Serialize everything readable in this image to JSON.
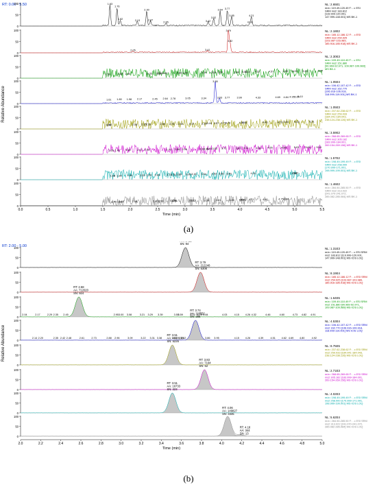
{
  "captions": {
    "a": "(a)",
    "b": "(b)"
  },
  "chart_data": [
    {
      "type": "line",
      "rt_label": "RT: 0.00 - 5.50",
      "xlabel": "Time (min)",
      "xlim": [
        0,
        5.5
      ],
      "x_ticks": [
        0.0,
        0.5,
        1.0,
        1.5,
        2.0,
        2.5,
        3.0,
        3.5,
        4.0,
        4.5,
        5.0,
        5.5
      ],
      "ylabel": "Relative Abundance",
      "ylim": [
        0,
        100
      ],
      "y_ticks": [
        0,
        50,
        100
      ],
      "traces": [
        {
          "color": "#000000",
          "nl": "NL: 2.65E1",
          "desc": [
            "m/z= 119.49-120.49 F: - c ESI",
            "SRM ms2 183.812",
            "[119.999-120.001,",
            "147.999-148.001] MS BK-1"
          ],
          "peaks": [
            {
              "x": 1.63,
              "y": 92
            },
            {
              "x": 1.76,
              "y": 80
            },
            {
              "x": 1.82,
              "y": 25
            },
            {
              "x": 2.13,
              "y": 18
            },
            {
              "x": 2.3,
              "y": 65
            },
            {
              "x": 2.37,
              "y": 20
            },
            {
              "x": 2.65,
              "y": 10
            },
            {
              "x": 3.42,
              "y": 15
            },
            {
              "x": 3.52,
              "y": 30
            },
            {
              "x": 3.64,
              "y": 65
            },
            {
              "x": 3.77,
              "y": 70
            },
            {
              "x": 3.85,
              "y": 40
            },
            {
              "x": 4.18,
              "y": 10
            },
            {
              "x": 4.21,
              "y": 40
            }
          ],
          "labels": [
            "1.63",
            "1.76",
            "1.82",
            "2.13",
            "2.30",
            "2.37",
            "2.65",
            "3.42",
            "3.52",
            "3.64",
            "3.77",
            "3.85",
            "4.18",
            "4.21"
          ]
        },
        {
          "color": "#cc0000",
          "nl": "NL: 2.18E2",
          "desc": [
            "m/z= 185.12-186.12 F: - c ESI",
            "SRM ms2 254.925",
            "[103.987-103.989,",
            "185.916-185.918] MS BK-1"
          ],
          "peaks": [
            {
              "x": 2.05,
              "y": 5
            },
            {
              "x": 3.41,
              "y": 6
            },
            {
              "x": 3.79,
              "y": 100
            },
            {
              "x": 3.82,
              "y": 45
            }
          ],
          "labels": [
            "2.05",
            "3.41",
            "3.79",
            "3.82"
          ]
        },
        {
          "color": "#009900",
          "nl": "NL: 2.30E3",
          "desc": [
            "m/z= 109.49-110.49 F: - c ESI",
            "SRM ms2 151.880",
            "[90.969-92.971, 109.987-109.989]",
            "MS BK-1"
          ],
          "labels": [
            "1.59",
            "1.82",
            "1.95",
            "2.35",
            "2.52",
            "2.54",
            "2.63",
            "2.89",
            "3.00",
            "3.34",
            "3.52",
            "3.64",
            "3.94",
            "4.08",
            "4.14",
            "4.32",
            "4.57",
            "4.83",
            "5.00",
            "5.19",
            "5.47"
          ]
        },
        {
          "color": "#0000cc",
          "nl": "NL: 1.05E4",
          "desc": [
            "m/z= 106.42-107.42 F: - c ESI",
            "SRM ms2 162.770",
            "[106.916-106.918,",
            "118.999-119.001] MS BK-1"
          ],
          "peaks": [
            {
              "x": 3.55,
              "y": 100
            },
            {
              "x": 3.63,
              "y": 20
            }
          ],
          "labels": [
            "1.61",
            "1.80",
            "1.98",
            "2.17",
            "2.45",
            "2.64",
            "2.78",
            "3.05",
            "3.34",
            "3.55",
            "3.63",
            "3.77",
            "3.99",
            "4.33",
            "4.69",
            "4.84",
            "4.95",
            "5.04",
            "5.10"
          ]
        },
        {
          "color": "#999900",
          "nl": "NL: 1.05E3",
          "desc": [
            "m/z= 237.62-238.62 F: - c ESI",
            "SRM ms2 259.033",
            "[184.041-184.043,",
            "238.124-238.126] MS BK-1"
          ],
          "labels": [
            "1.60",
            "1.62",
            "2.08",
            "2.25",
            "2.33",
            "2.59",
            "2.76",
            "2.92",
            "3.12",
            "3.35",
            "3.44",
            "3.57",
            "3.70",
            "3.78",
            "4.03",
            "4.08",
            "4.46",
            "4.73",
            "4.84",
            "5.04",
            "5.31"
          ]
        },
        {
          "color": "#cc00cc",
          "nl": "NL: 3.59E2",
          "desc": [
            "m/z= 268.65-269.65 F: - c ESI",
            "SRM ms2 305.182",
            "[183.999-184.001,",
            "269.154-269.156] MS BK-1"
          ],
          "labels": [
            "1.65",
            "1.76",
            "1.96",
            "2.17",
            "2.30",
            "2.70",
            "2.86",
            "2.99",
            "3.31",
            "3.38",
            "3.44",
            "3.54",
            "3.71",
            "3.97",
            "4.11",
            "4.34",
            "4.55",
            "4.80",
            "5.03",
            "5.24",
            "5.44"
          ]
        },
        {
          "color": "#00aaaa",
          "nl": "NL: 1.57E2",
          "desc": [
            "m/z= 198.49-199.49 F: - c ESI",
            "SRM ms2 258.000",
            "[170.999-171.001,",
            "198.999-199.001] MS BK-1"
          ],
          "labels": [
            "1.68",
            "1.80",
            "1.99",
            "2.22",
            "2.34",
            "2.49",
            "2.71",
            "2.78",
            "2.89",
            "3.06",
            "3.16",
            "3.34",
            "3.53",
            "3.66",
            "3.80",
            "4.24",
            "4.99",
            "5.02"
          ]
        },
        {
          "color": "#888888",
          "nl": "NL: 1.46E2",
          "desc": [
            "m/z= 284.50-285.50 F: - c ESI",
            "SRM ms2 313.022",
            "[241.070-241.072,",
            "285.082-285.084] MS BK-1"
          ],
          "labels": [
            "1.70",
            "1.81",
            "1.84",
            "2.08",
            "2.46",
            "2.56",
            "2.79",
            "2.81",
            "3.12",
            "3.15",
            "3.39",
            "3.61",
            "3.85",
            "4.03",
            "4.06",
            "4.21",
            "4.46",
            "4.75",
            "4.84"
          ]
        }
      ]
    },
    {
      "type": "area",
      "rt_label": "RT: 2.00 - 5.00",
      "xlabel": "Time (min)",
      "xlim": [
        2.0,
        5.0
      ],
      "x_ticks": [
        2.0,
        2.2,
        2.4,
        2.6,
        2.8,
        3.0,
        3.2,
        3.4,
        3.6,
        3.8,
        4.0,
        4.2,
        4.4,
        4.6,
        4.8,
        5.0
      ],
      "ylabel": "Relative Abundance",
      "ylim": [
        0,
        100
      ],
      "y_ticks": [
        0,
        50,
        100
      ],
      "traces": [
        {
          "color": "#000000",
          "nl": "NL: 1.31E3",
          "desc": [
            "m/z= 119.49-120.49 F: - c ESI SRM",
            "ms2 183.812 [119.999-120.001,",
            "147.999-148.001] MS ICIS LOQ"
          ],
          "peaks": [
            {
              "x": 3.64,
              "y": 100
            }
          ],
          "annot": [
            "RT: 3.64",
            "AA: 3415",
            "SN: 94"
          ]
        },
        {
          "color": "#cc0000",
          "nl": "NL: 8.19E4",
          "desc": [
            "m/z= 185.12-186.12 F: - c ESI SRM",
            "ms2 254.925 [103.987-103.989,",
            "185.916-185.918] MS ICIS LOQ"
          ],
          "peaks": [
            {
              "x": 3.79,
              "y": 100
            }
          ],
          "annot": [
            "RT: 3.79",
            "AA: 212248",
            "SN: 5308"
          ]
        },
        {
          "color": "#009900",
          "nl": "NL: 1.64E5",
          "desc": [
            "m/z= 109.49-110.49 F: - c ESI SRM",
            "ms2 151.880 [90.969-92.971,",
            "109.987-109.989] MS ICIS LOQ"
          ],
          "peaks": [
            {
              "x": 2.58,
              "y": 100
            }
          ],
          "annot": [
            "RT: 2.58",
            "AA: 712020",
            "SN: 924"
          ],
          "labels": [
            "2.04",
            "2.17",
            "2.29",
            "2.35",
            "2.45",
            "2.95",
            "3.00",
            "3.08",
            "3.21",
            "3.29",
            "3.39",
            "3.55",
            "3.59",
            "3.71",
            "3.78",
            "3.84",
            "4.03",
            "4.15",
            "4.26",
            "4.32",
            "4.46",
            "4.60",
            "4.73",
            "4.82",
            "4.91"
          ]
        },
        {
          "color": "#0000cc",
          "nl": "NL: 4.53E4",
          "desc": [
            "m/z= 106.42-107.42 F: - c ESI SRM",
            "ms2 162.770 [106.916-106.918,",
            "118.999-119.001] MS ICIS LOQ"
          ],
          "peaks": [
            {
              "x": 3.74,
              "y": 100
            }
          ],
          "annot": [
            "RT: 3.74",
            "AA: 118552",
            "SN: 286"
          ],
          "labels": [
            "2.14",
            "2.20",
            "2.35",
            "2.42",
            "2.48",
            "2.61",
            "2.73",
            "2.88",
            "2.96",
            "3.09",
            "3.22",
            "3.31",
            "3.38",
            "3.53",
            "3.62",
            "3.86",
            "3.95",
            "4.15",
            "4.26",
            "4.39",
            "4.51",
            "4.62",
            "4.69",
            "4.80",
            "4.92"
          ]
        },
        {
          "color": "#999900",
          "nl": "NL: 8.75E5",
          "desc": [
            "m/z= 237.62-238.62 F: - c ESI SRM",
            "ms2 259.033 [184.041-184.043,",
            "238.124-238.126] MS ICIS LOQ"
          ],
          "peaks": [
            {
              "x": 3.51,
              "y": 100
            }
          ],
          "annot": [
            "RT: 3.51",
            "AA: 4038938",
            "SN: 5226"
          ]
        },
        {
          "color": "#cc00cc",
          "nl": "NL: 2.71E3",
          "desc": [
            "m/z= 268.65-269.65 F: - c ESI SRM",
            "ms2 305.182 [183.999-184.001,",
            "269.154-269.156] MS ICIS LOQ"
          ],
          "peaks": [
            {
              "x": 3.83,
              "y": 100
            }
          ],
          "annot": [
            "RT: 3.83",
            "AA: 7194",
            "SN: 52"
          ]
        },
        {
          "color": "#00aaaa",
          "nl": "NL: 4.02E3",
          "desc": [
            "m/z= 198.49-199.49 F: - c ESI SRM",
            "ms2 258.000 [170.999-171.001,",
            "198.999-199.001] MS ICIS LOQ"
          ],
          "peaks": [
            {
              "x": 3.51,
              "y": 100
            }
          ],
          "annot": [
            "RT: 3.51",
            "AA: 16733",
            "SN: 223"
          ]
        },
        {
          "color": "#888888",
          "nl": "NL: 5.62E4",
          "desc": [
            "m/z= 284.50-285.50 F: - c ESI SRM",
            "ms2 313.022 [241.070-241.072,",
            "285.082-285.084] MS ICIS LOQ"
          ],
          "peaks": [
            {
              "x": 4.06,
              "y": 100
            },
            {
              "x": 4.18,
              "y": 8
            }
          ],
          "annot": [
            "RT: 4.06",
            "AA: 149827",
            "SN: 3345"
          ],
          "annot2": [
            "RT: 4.18",
            "AA: 344",
            "SN: 13"
          ]
        }
      ]
    }
  ]
}
